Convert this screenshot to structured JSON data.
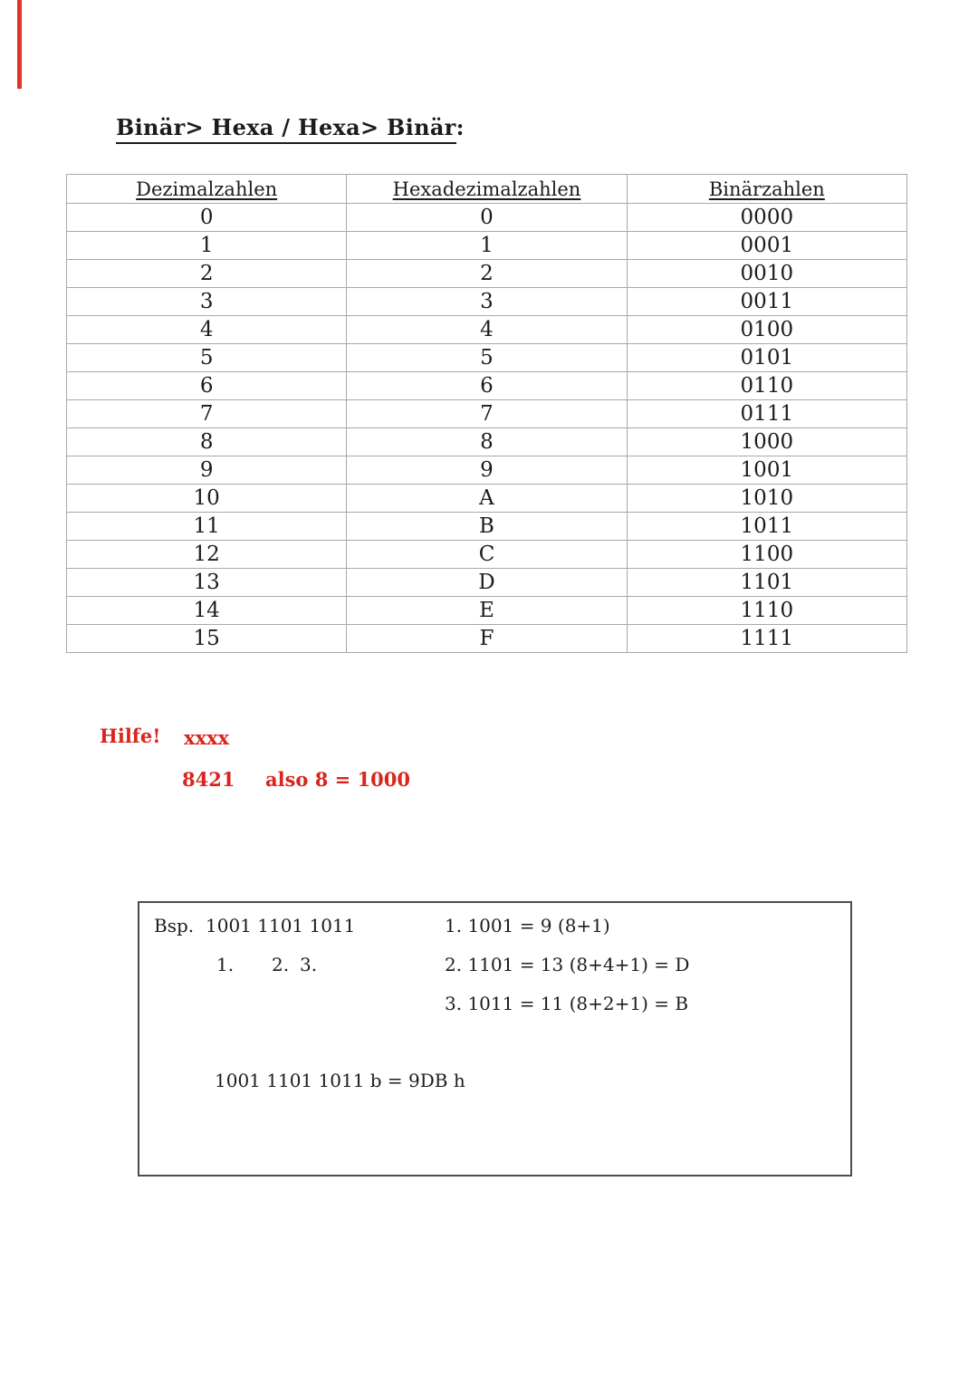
{
  "document": {
    "title": {
      "text": "Binär> Hexa / Hexa> Binär",
      "colon": ":"
    }
  },
  "conversion_table": {
    "headers": [
      "Dezimalzahlen",
      "Hexadezimalzahlen",
      "Binärzahlen"
    ],
    "rows": [
      [
        "0",
        "0",
        "0000"
      ],
      [
        "1",
        "1",
        "0001"
      ],
      [
        "2",
        "2",
        "0010"
      ],
      [
        "3",
        "3",
        "0011"
      ],
      [
        "4",
        "4",
        "0100"
      ],
      [
        "5",
        "5",
        "0101"
      ],
      [
        "6",
        "6",
        "0110"
      ],
      [
        "7",
        "7",
        "0111"
      ],
      [
        "8",
        "8",
        "1000"
      ],
      [
        "9",
        "9",
        "1001"
      ],
      [
        "10",
        "A",
        "1010"
      ],
      [
        "11",
        "B",
        "1011"
      ],
      [
        "12",
        "C",
        "1100"
      ],
      [
        "13",
        "D",
        "1101"
      ],
      [
        "14",
        "E",
        "1110"
      ],
      [
        "15",
        "F",
        "1111"
      ]
    ]
  },
  "help_note": {
    "label": "Hilfe!",
    "placeholder": "xxxx",
    "weights": "8421",
    "example": "also 8 = 1000",
    "color": "#d9251d"
  },
  "example_box": {
    "label": "Bsp.",
    "binary_input": "1001 1101 1011",
    "group_markers": [
      "1.",
      "2.",
      "3."
    ],
    "steps": [
      "1. 1001 = 9 (8+1)",
      "2. 1101 = 13 (8+4+1) = D",
      "3. 1011 = 11 (8+2+1) = B"
    ],
    "result": "1001 1101 1011 b = 9DB h"
  },
  "decorations": {
    "red_marker_color": "#e03428",
    "table_border_color": "#a9a9a9",
    "box_border_color": "#4d4d4d",
    "text_color": "#1c1c1c"
  }
}
